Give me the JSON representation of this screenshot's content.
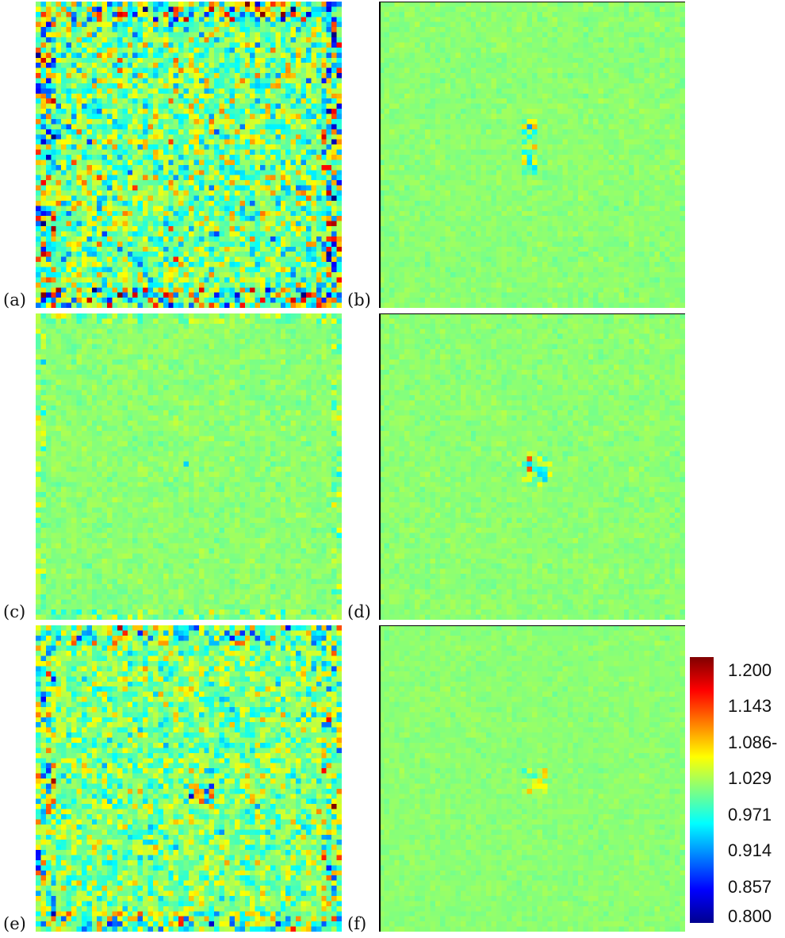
{
  "chart_data": [
    {
      "type": "heatmap",
      "panel_label": "(a)",
      "grid_size": 60,
      "pattern": "noisy_strong"
    },
    {
      "type": "heatmap",
      "panel_label": "(b)",
      "grid_size": 60,
      "pattern": "flat_center_vertical_spike"
    },
    {
      "type": "heatmap",
      "panel_label": "(c)",
      "grid_size": 60,
      "pattern": "flat_with_edge_spots"
    },
    {
      "type": "heatmap",
      "panel_label": "(d)",
      "grid_size": 60,
      "pattern": "flat_center_ring"
    },
    {
      "type": "heatmap",
      "panel_label": "(e)",
      "grid_size": 60,
      "pattern": "noisy_moderate"
    },
    {
      "type": "heatmap",
      "panel_label": "(f)",
      "grid_size": 60,
      "pattern": "flat_center_small_ring"
    }
  ],
  "colorbar": {
    "min": 0.8,
    "max": 1.2,
    "colormap": "jet",
    "tick_labels": [
      "1.200",
      "1.143",
      "1.086-",
      "1.029",
      "0.971",
      "0.914",
      "0.857",
      "0.800"
    ]
  }
}
